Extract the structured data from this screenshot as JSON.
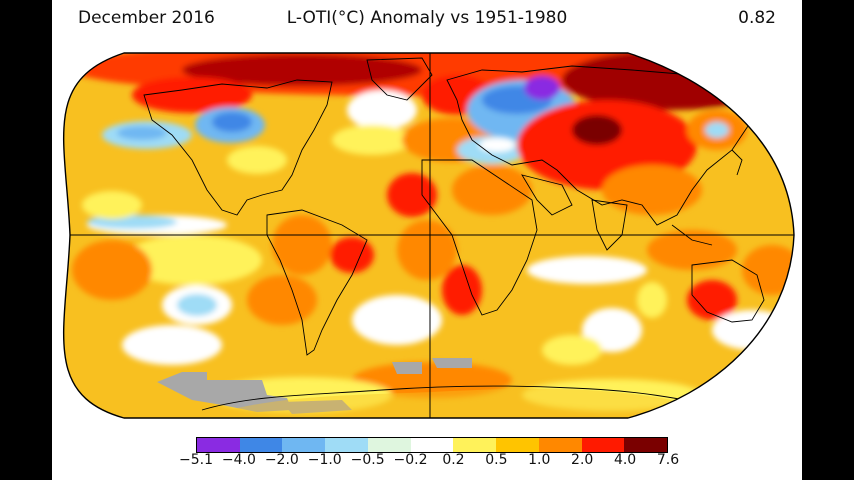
{
  "header": {
    "date": "December 2016",
    "title": "L-OTI(°C) Anomaly vs 1951-1980",
    "global_mean": "0.82"
  },
  "colors": {
    "background": "#000000",
    "ocean_base": "#f8c020",
    "land_outline": "#000000",
    "missing_data": "#a8a8a8",
    "grid_line": "#000000"
  },
  "legend": {
    "colors": [
      "#8a2be2",
      "#3f87e6",
      "#6fb7f2",
      "#9fdcf6",
      "#dff6df",
      "#ffffff",
      "#fff25a",
      "#ffc400",
      "#ff8800",
      "#ff1a00",
      "#7a0000"
    ],
    "labels": [
      "−5.1",
      "−4.0",
      "−2.0",
      "−1.0",
      "−0.5",
      "−0.2",
      "0.2",
      "0.5",
      "1.0",
      "2.0",
      "4.0",
      "7.6"
    ]
  }
}
